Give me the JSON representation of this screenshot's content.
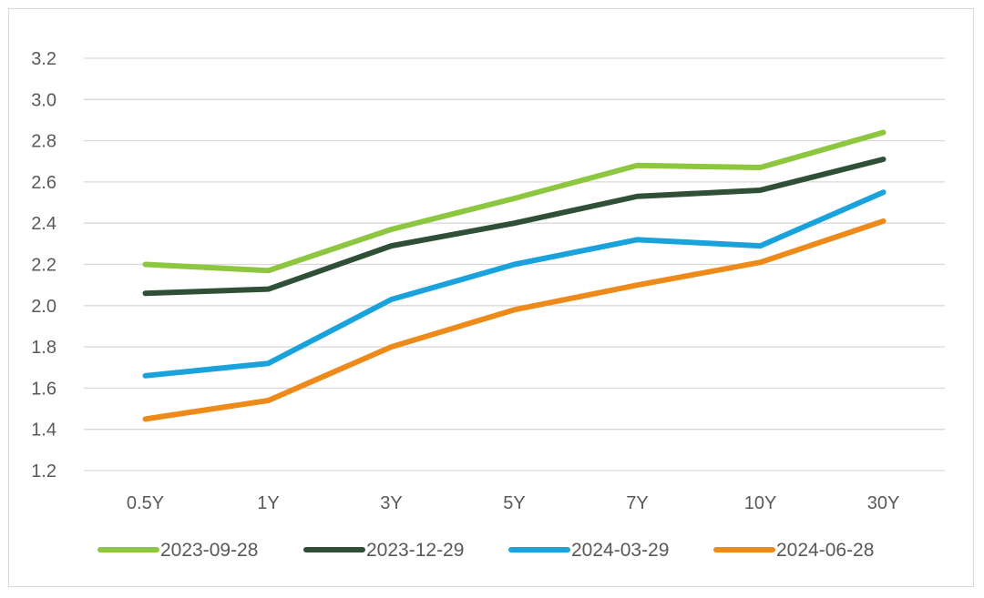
{
  "chart_data": {
    "type": "line",
    "title": "",
    "xlabel": "",
    "ylabel": "",
    "categories": [
      "0.5Y",
      "1Y",
      "3Y",
      "5Y",
      "7Y",
      "10Y",
      "30Y"
    ],
    "ylim": [
      1.2,
      3.2
    ],
    "yticks": [
      "1.2",
      "1.4",
      "1.6",
      "1.8",
      "2.0",
      "2.2",
      "2.4",
      "2.6",
      "2.8",
      "3.0",
      "3.2"
    ],
    "grid": "horizontal",
    "legend_position": "bottom",
    "series": [
      {
        "name": "2023-09-28",
        "color": "#8dc63f",
        "values": [
          2.2,
          2.17,
          2.37,
          2.52,
          2.68,
          2.67,
          2.84
        ]
      },
      {
        "name": "2023-12-29",
        "color": "#2f4f36",
        "values": [
          2.06,
          2.08,
          2.29,
          2.4,
          2.53,
          2.56,
          2.71
        ]
      },
      {
        "name": "2024-03-29",
        "color": "#1aa2dd",
        "values": [
          1.66,
          1.72,
          2.03,
          2.2,
          2.32,
          2.29,
          2.55
        ]
      },
      {
        "name": "2024-06-28",
        "color": "#ee8a1a",
        "values": [
          1.45,
          1.54,
          1.8,
          1.98,
          2.1,
          2.21,
          2.41
        ]
      }
    ]
  }
}
